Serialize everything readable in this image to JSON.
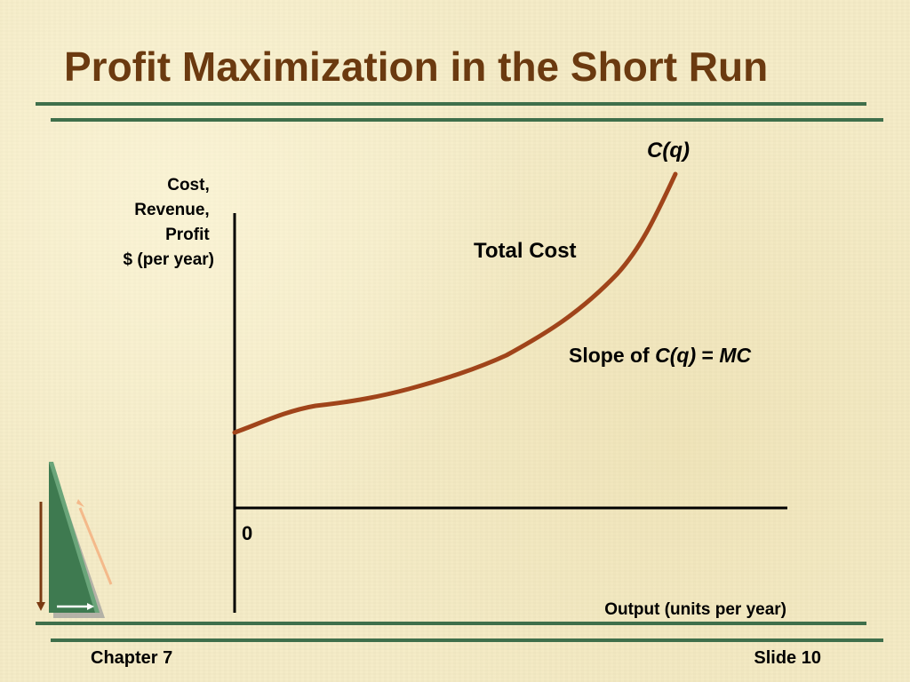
{
  "slide": {
    "title": "Profit Maximization in the Short Run",
    "footer_left": "Chapter 7",
    "footer_right": "Slide 10"
  },
  "diagram": {
    "y_axis_label": [
      "Cost,",
      "Revenue,",
      "Profit",
      "$ (per year)"
    ],
    "x_axis_label": "Output (units per year)",
    "origin_label": "0",
    "curve_label": "C(q)",
    "curve_title": "Total Cost",
    "slope_note": {
      "prefix": "Slope of ",
      "term": "C(q)",
      "equals": " = ",
      "result": "MC"
    }
  },
  "colors": {
    "title": "#6b3a10",
    "curve": "#a0441a",
    "rules": "#3f6f4b",
    "axes": "#000000",
    "ornament_green": "#3e7a50"
  },
  "icons": {
    "ornament": "green-triangle-ornament-icon"
  }
}
